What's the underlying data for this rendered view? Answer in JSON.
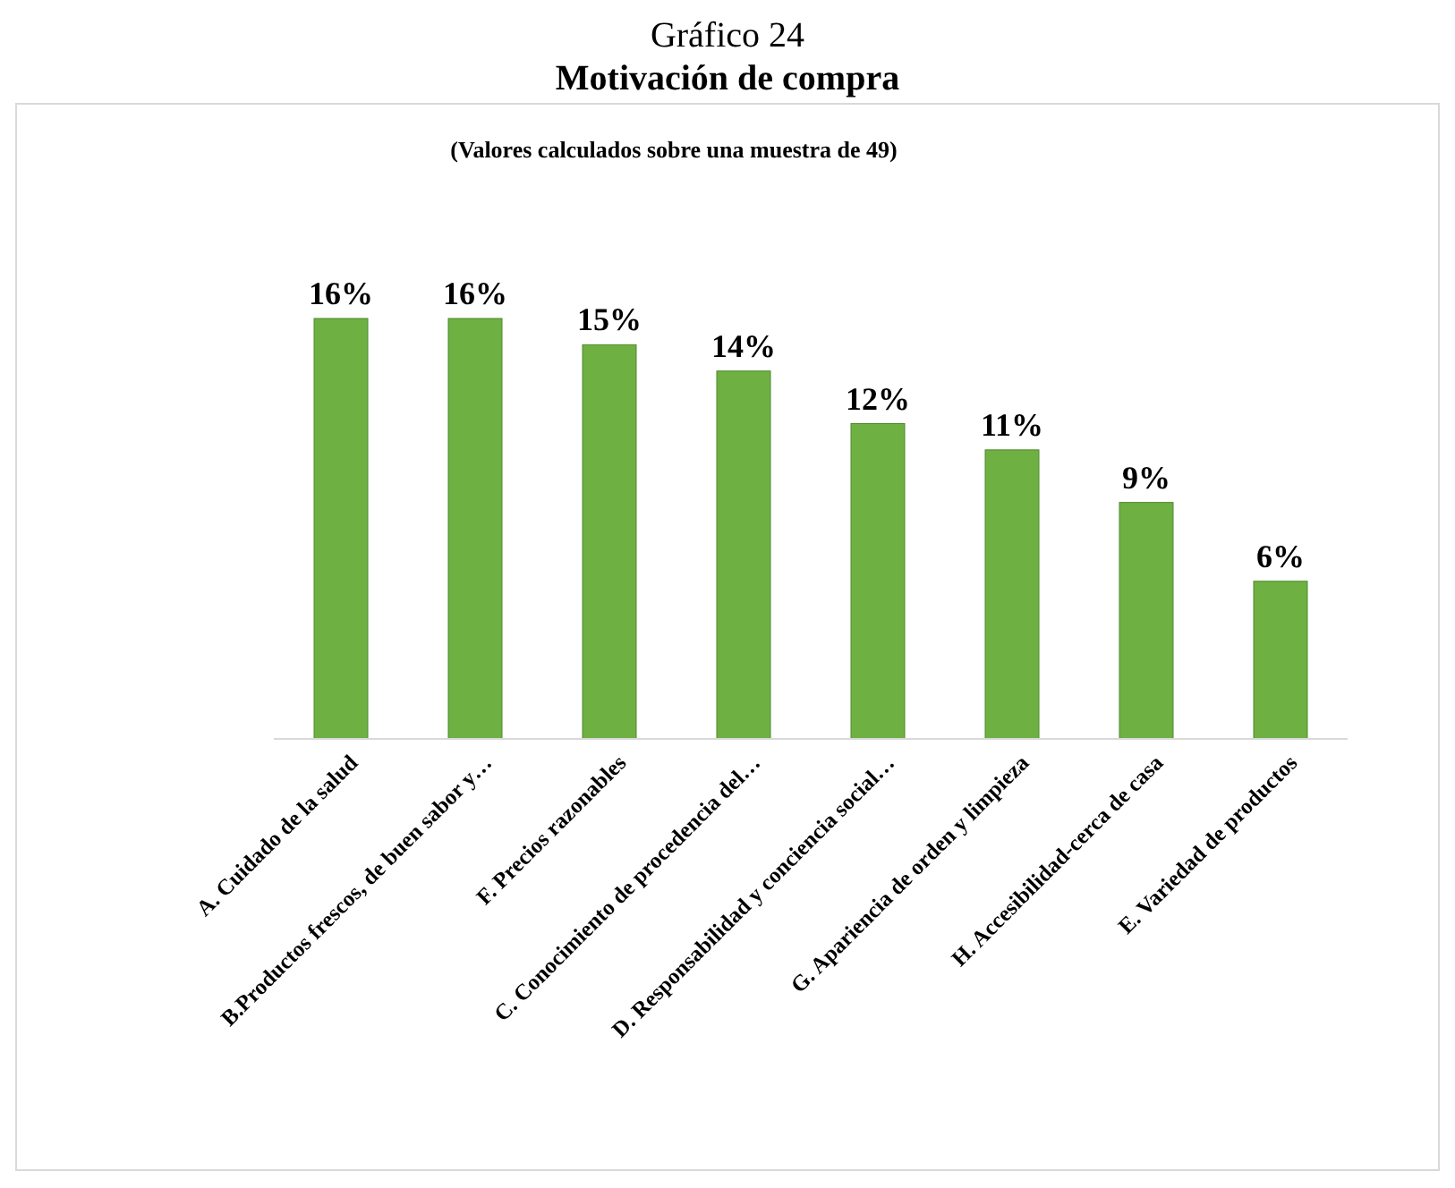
{
  "chart_data": {
    "type": "bar",
    "title": "Gráfico 24",
    "subtitle": "Motivación de compra",
    "annotations": [
      "(Valores calculados sobre una muestra de 49)"
    ],
    "categories": [
      "A. Cuidado de la salud",
      "B.Productos frescos, de buen sabor y…",
      "F. Precios razonables",
      "C. Conocimiento de procedencia del…",
      "D. Responsabilidad y conciencia social…",
      "G. Apariencia de orden y limpieza",
      "H. Accesibilidad-cerca de casa",
      "E. Variedad de productos"
    ],
    "values": [
      16,
      16,
      15,
      14,
      12,
      11,
      9,
      6
    ],
    "value_labels": [
      "16%",
      "16%",
      "15%",
      "14%",
      "12%",
      "11%",
      "9%",
      "6%"
    ],
    "color": "#6fb043"
  }
}
